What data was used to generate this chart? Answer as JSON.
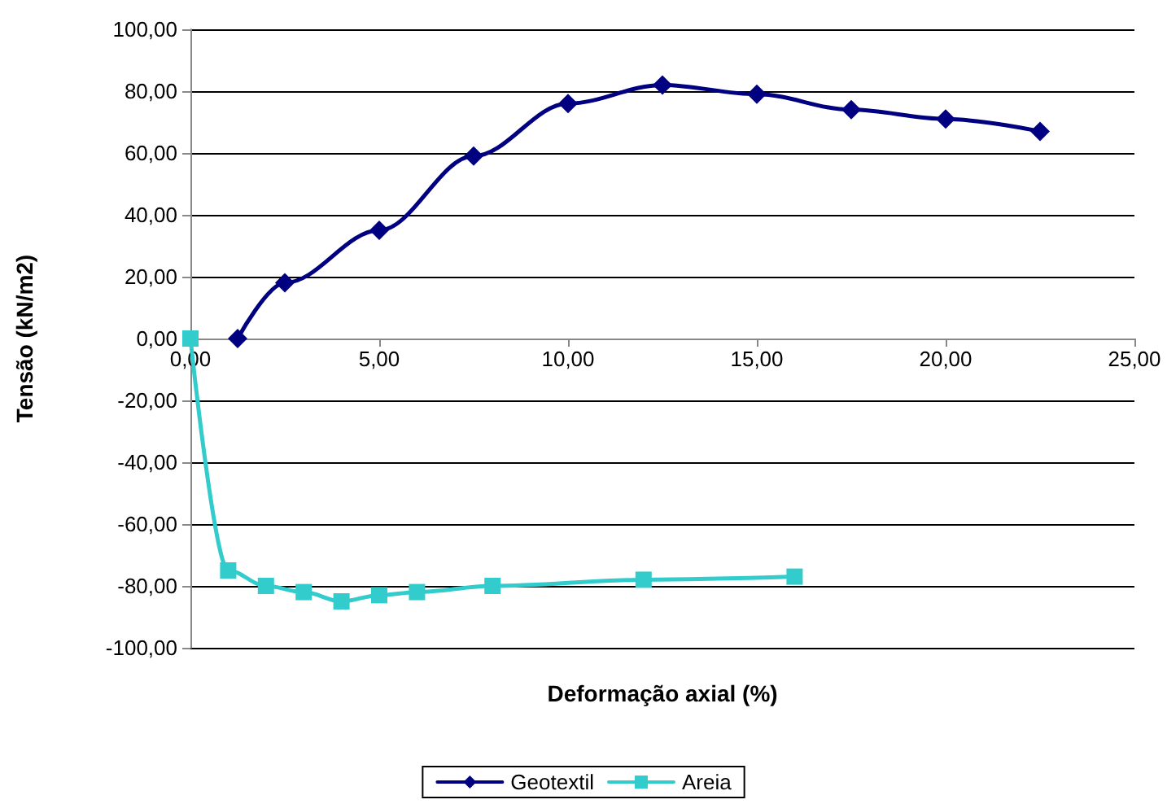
{
  "chart_data": {
    "type": "line",
    "xlabel": "Deformação axial (%)",
    "ylabel": "Tensão (kN/m2)",
    "series": [
      {
        "name": "Geotextil",
        "color": "#000080",
        "marker": "diamond",
        "x": [
          1.25,
          2.5,
          5,
          7.5,
          10,
          12.5,
          15,
          17.5,
          20,
          22.5
        ],
        "values": [
          0,
          18,
          35,
          59,
          76,
          82,
          79,
          74,
          71,
          67
        ]
      },
      {
        "name": "Areia",
        "color": "#33cccc",
        "marker": "square",
        "x": [
          0,
          1,
          2,
          3,
          4,
          5,
          6,
          8,
          12,
          16
        ],
        "values": [
          0,
          -75,
          -80,
          -82,
          -85,
          -83,
          -82,
          -80,
          -78,
          -77
        ]
      }
    ],
    "xlim": [
      0,
      25
    ],
    "xticks": [
      {
        "value": 0,
        "label": "0,00"
      },
      {
        "value": 5,
        "label": "5,00"
      },
      {
        "value": 10,
        "label": "10,00"
      },
      {
        "value": 15,
        "label": "15,00"
      },
      {
        "value": 20,
        "label": "20,00"
      },
      {
        "value": 25,
        "label": "25,00"
      }
    ],
    "ylim": [
      -100,
      100
    ],
    "yticks": [
      {
        "value": -100,
        "label": "-100,00"
      },
      {
        "value": -80,
        "label": "-80,00"
      },
      {
        "value": -60,
        "label": "-60,00"
      },
      {
        "value": -40,
        "label": "-40,00"
      },
      {
        "value": -20,
        "label": "-20,00"
      },
      {
        "value": 0,
        "label": "0,00"
      },
      {
        "value": 20,
        "label": "20,00"
      },
      {
        "value": 40,
        "label": "40,00"
      },
      {
        "value": 60,
        "label": "60,00"
      },
      {
        "value": 80,
        "label": "80,00"
      },
      {
        "value": 100,
        "label": "100,00"
      }
    ],
    "grid": "y",
    "legend": "bottom",
    "line_style": "solid"
  }
}
